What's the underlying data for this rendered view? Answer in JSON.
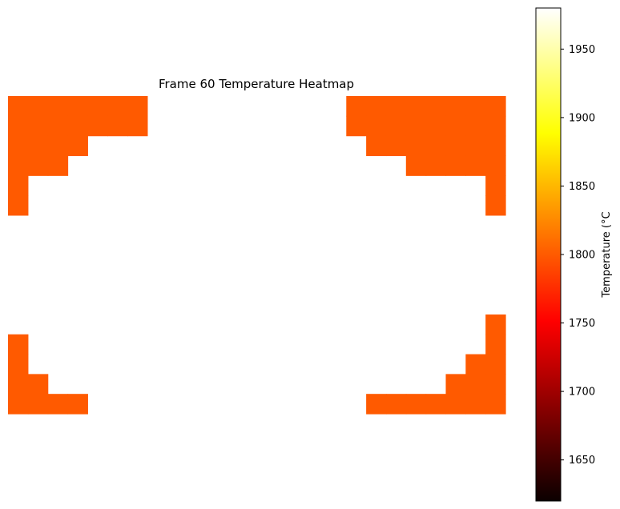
{
  "chart_data": {
    "type": "heatmap",
    "title": "Frame 60 Temperature Heatmap",
    "grid_size": [
      16,
      25
    ],
    "axes_visible": false,
    "colormap": "hot",
    "blank_color": "#ffffff",
    "colorbar": {
      "label": "Temperature (°C",
      "range": [
        1620,
        1980
      ],
      "ticks": [
        1650,
        1700,
        1750,
        1800,
        1850,
        1900,
        1950
      ],
      "tick_labels": [
        "1650",
        "1700",
        "1750",
        "1800",
        "1850",
        "1900",
        "1950"
      ],
      "placement": "right"
    },
    "cell_value": 1800,
    "cell_color": "#ff5a00",
    "filled_rows": [
      {
        "row": 0,
        "cols": [
          [
            0,
            6
          ],
          [
            17,
            24
          ]
        ]
      },
      {
        "row": 1,
        "cols": [
          [
            0,
            6
          ],
          [
            17,
            24
          ]
        ]
      },
      {
        "row": 2,
        "cols": [
          [
            0,
            3
          ],
          [
            18,
            24
          ]
        ]
      },
      {
        "row": 3,
        "cols": [
          [
            0,
            2
          ],
          [
            20,
            24
          ]
        ]
      },
      {
        "row": 4,
        "cols": [
          [
            0,
            0
          ],
          [
            24,
            24
          ]
        ]
      },
      {
        "row": 5,
        "cols": [
          [
            0,
            0
          ],
          [
            24,
            24
          ]
        ]
      },
      {
        "row": 11,
        "cols": [
          [
            24,
            24
          ]
        ]
      },
      {
        "row": 12,
        "cols": [
          [
            0,
            0
          ],
          [
            24,
            24
          ]
        ]
      },
      {
        "row": 13,
        "cols": [
          [
            0,
            0
          ],
          [
            23,
            24
          ]
        ]
      },
      {
        "row": 14,
        "cols": [
          [
            0,
            1
          ],
          [
            22,
            24
          ]
        ]
      },
      {
        "row": 15,
        "cols": [
          [
            0,
            3
          ],
          [
            18,
            24
          ]
        ]
      }
    ]
  }
}
